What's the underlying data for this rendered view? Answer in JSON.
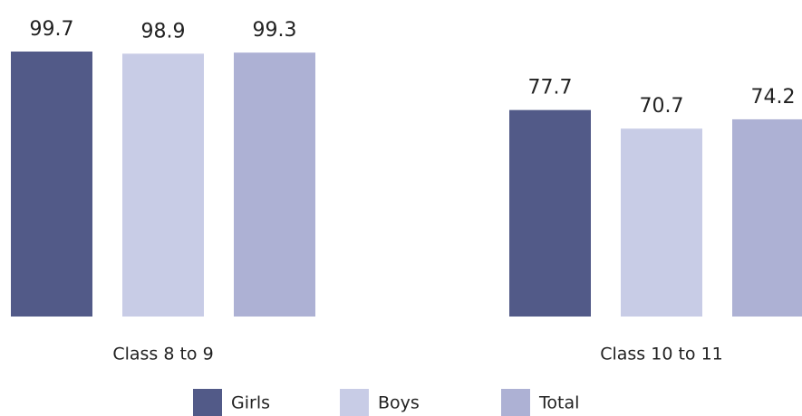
{
  "chart_data": {
    "type": "bar",
    "categories": [
      "Class 8 to 9",
      "Class 10 to 11"
    ],
    "series": [
      {
        "name": "Girls",
        "color": "#525a88",
        "values": [
          99.7,
          77.7
        ]
      },
      {
        "name": "Boys",
        "color": "#c8cce6",
        "values": [
          98.9,
          70.7
        ]
      },
      {
        "name": "Total",
        "color": "#adb1d4",
        "values": [
          99.3,
          74.2
        ]
      }
    ],
    "legend": "bottom"
  }
}
